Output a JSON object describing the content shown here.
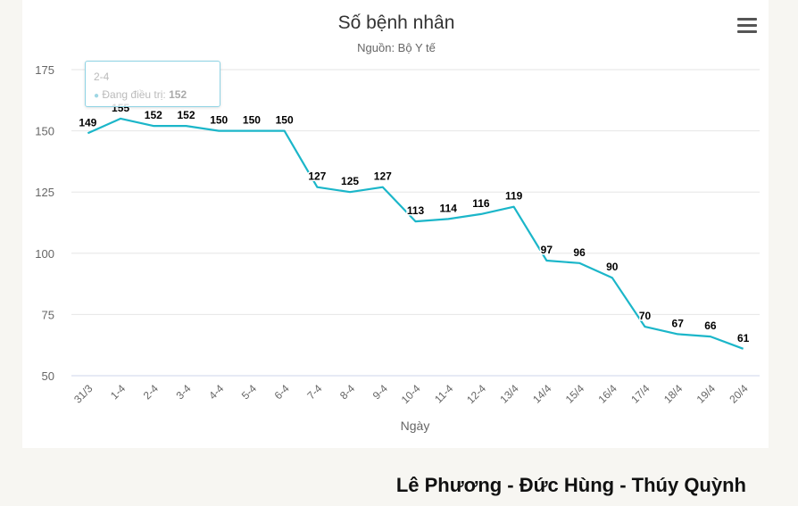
{
  "chart_data": {
    "type": "line",
    "title": "Số bệnh nhân",
    "subtitle": "Nguồn: Bộ Y tế",
    "xlabel": "Ngày",
    "ylabel": "",
    "categories": [
      "31/3",
      "1-4",
      "2-4",
      "3-4",
      "4-4",
      "5-4",
      "6-4",
      "7-4",
      "8-4",
      "9-4",
      "10-4",
      "11-4",
      "12-4",
      "13/4",
      "14/4",
      "15/4",
      "16/4",
      "17/4",
      "18/4",
      "19/4",
      "20/4"
    ],
    "values": [
      149,
      155,
      152,
      152,
      150,
      150,
      150,
      127,
      125,
      127,
      113,
      114,
      116,
      119,
      97,
      96,
      90,
      70,
      67,
      66,
      61
    ],
    "ylim": [
      50,
      175
    ],
    "yticks": [
      50,
      75,
      100,
      125,
      150,
      175
    ],
    "grid": true,
    "line_color": "#1bb6c9"
  },
  "tooltip": {
    "category": "2-4",
    "series_label": "Đang điều trị:",
    "value": "152"
  },
  "credit": "Lê Phương - Đức Hùng - Thúy Quỳnh"
}
